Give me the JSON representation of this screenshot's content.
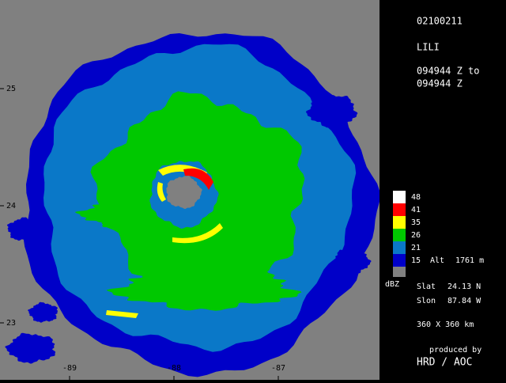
{
  "header": {
    "date": "02100211",
    "storm": "LILI",
    "time_from": "094944 Z to",
    "time_to": "094944 Z"
  },
  "axes": {
    "lat_labels": [
      "25",
      "24",
      "23"
    ],
    "lon_labels": [
      "-89",
      "-88",
      "-87"
    ]
  },
  "legend": {
    "unit": "dBZ",
    "background_color": "#808080",
    "items": [
      {
        "label": "48",
        "color": "#ffffff"
      },
      {
        "label": "41",
        "color": "#ff0000"
      },
      {
        "label": "35",
        "color": "#ffff00"
      },
      {
        "label": "26",
        "color": "#00c800"
      },
      {
        "label": "21",
        "color": "#0a78c8"
      },
      {
        "label": "15",
        "color": "#0000c8"
      }
    ]
  },
  "info": {
    "alt_label": "Alt",
    "alt_value": "1761 m",
    "slat_label": "Slat",
    "slat_value": "24.13 N",
    "slon_label": "Slon",
    "slon_value": "87.84 W",
    "domain": "360 X 360 km",
    "credit_line1": "produced by",
    "credit_line2": "HRD / AOC"
  }
}
